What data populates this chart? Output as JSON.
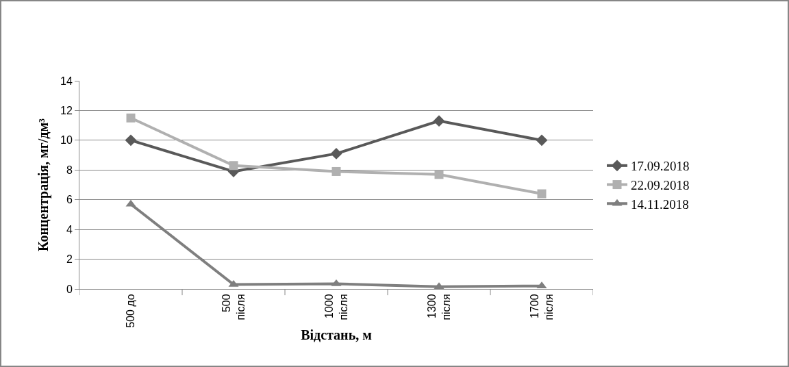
{
  "chart_data": {
    "type": "line",
    "xlabel": "Відстань, м",
    "ylabel": "Концентрація, мг/дм³",
    "categories": [
      "500 до",
      "500\nпісля",
      "1000\nпісля",
      "1300\nпісля",
      "1700\nпісля"
    ],
    "series": [
      {
        "name": "17.09.2018",
        "color": "#595959",
        "marker": "diamond",
        "values": [
          10,
          7.9,
          9.1,
          11.3,
          10
        ]
      },
      {
        "name": "22.09.2018",
        "color": "#b0b0b0",
        "marker": "square",
        "values": [
          11.5,
          8.3,
          7.9,
          7.7,
          6.4
        ]
      },
      {
        "name": "14.11.2018",
        "color": "#7f7f7f",
        "marker": "triangle",
        "values": [
          5.7,
          0.3,
          0.35,
          0.15,
          0.2
        ]
      }
    ],
    "ylim": [
      0,
      14
    ],
    "yticks": [
      0,
      2,
      4,
      6,
      8,
      10,
      12,
      14
    ],
    "grid": "y",
    "legend": "right",
    "line_style": "solid"
  }
}
